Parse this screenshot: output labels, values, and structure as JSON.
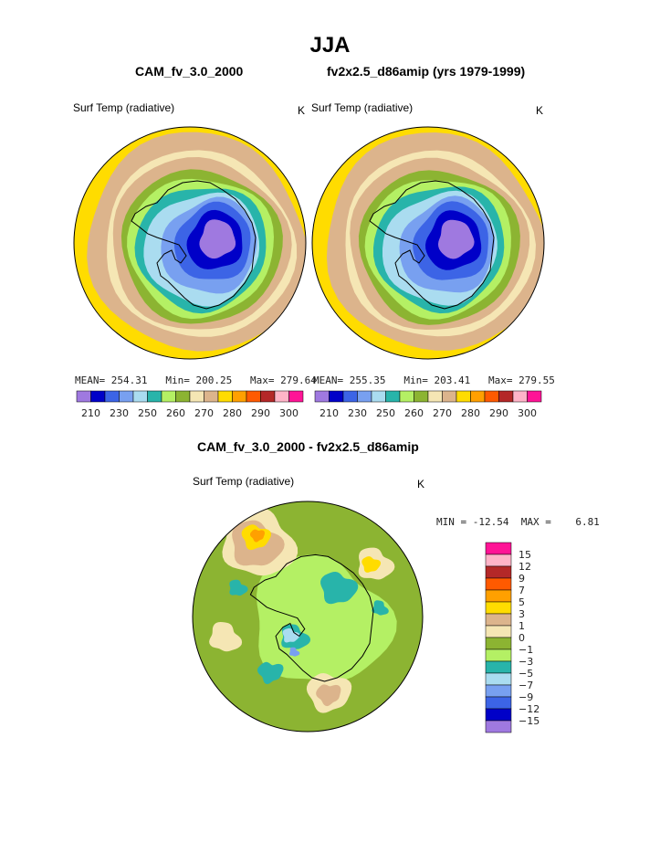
{
  "figure": {
    "title": "JJA"
  },
  "palette": [
    "#9f79e0",
    "#0000c8",
    "#3c64e6",
    "#78a0f0",
    "#aadcf0",
    "#28b4aa",
    "#b4f064",
    "#8cb432",
    "#f5e6b4",
    "#dcb48c",
    "#ffdc00",
    "#ffa000",
    "#ff5a00",
    "#b42828",
    "#ffb4c8",
    "#ff1496"
  ],
  "panels": [
    {
      "title": "CAM_fv_3.0_2000",
      "var_label": "Surf Temp (radiative)",
      "units": "K",
      "stats_text": "MEAN= 254.31   Min= 200.25   Max= 279.64"
    },
    {
      "title": "fv2x2.5_d86amip (yrs 1979-1999)",
      "var_label": "Surf Temp (radiative)",
      "units": "K",
      "stats_text": "MEAN= 255.35   Min= 203.41   Max= 279.55"
    },
    {
      "title": "CAM_fv_3.0_2000 - fv2x2.5_d86amip",
      "var_label": "Surf Temp (radiative)",
      "units": "K",
      "stats_text": "MIN = -12.54  MAX =    6.81"
    }
  ],
  "chart_data": [
    {
      "type": "heatmap",
      "projection": "south polar stereographic",
      "title": "CAM_fv_3.0_2000",
      "variable": "Surf Temp (radiative)",
      "units": "K",
      "mean": 254.31,
      "min": 200.25,
      "max": 279.64,
      "colorbar_ticks": [
        210,
        230,
        250,
        260,
        270,
        280,
        290,
        300
      ],
      "contour_levels": [
        210,
        220,
        230,
        240,
        245,
        250,
        255,
        260,
        265,
        270,
        275,
        280,
        285,
        290,
        295,
        300
      ]
    },
    {
      "type": "heatmap",
      "projection": "south polar stereographic",
      "title": "fv2x2.5_d86amip (yrs 1979-1999)",
      "variable": "Surf Temp (radiative)",
      "units": "K",
      "mean": 255.35,
      "min": 203.41,
      "max": 279.55,
      "colorbar_ticks": [
        210,
        230,
        250,
        260,
        270,
        280,
        290,
        300
      ],
      "contour_levels": [
        210,
        220,
        230,
        240,
        245,
        250,
        255,
        260,
        265,
        270,
        275,
        280,
        285,
        290,
        295,
        300
      ]
    },
    {
      "type": "heatmap",
      "projection": "south polar stereographic",
      "title": "CAM_fv_3.0_2000 - fv2x2.5_d86amip",
      "variable": "Surf Temp (radiative)",
      "units": "K",
      "min": -12.54,
      "max": 6.81,
      "colorbar_ticks": [
        15,
        12,
        9,
        7,
        5,
        3,
        1,
        0,
        -1,
        -3,
        -5,
        -7,
        -9,
        -12,
        -15
      ],
      "colorbar_colors": [
        "#ff1496",
        "#ffb4c8",
        "#b42828",
        "#ff5a00",
        "#ffa000",
        "#ffdc00",
        "#dcb48c",
        "#f5e6b4",
        "#8cb432",
        "#b4f064",
        "#28b4aa",
        "#aadcf0",
        "#78a0f0",
        "#3c64e6",
        "#0000c8",
        "#9f79e0"
      ]
    }
  ]
}
